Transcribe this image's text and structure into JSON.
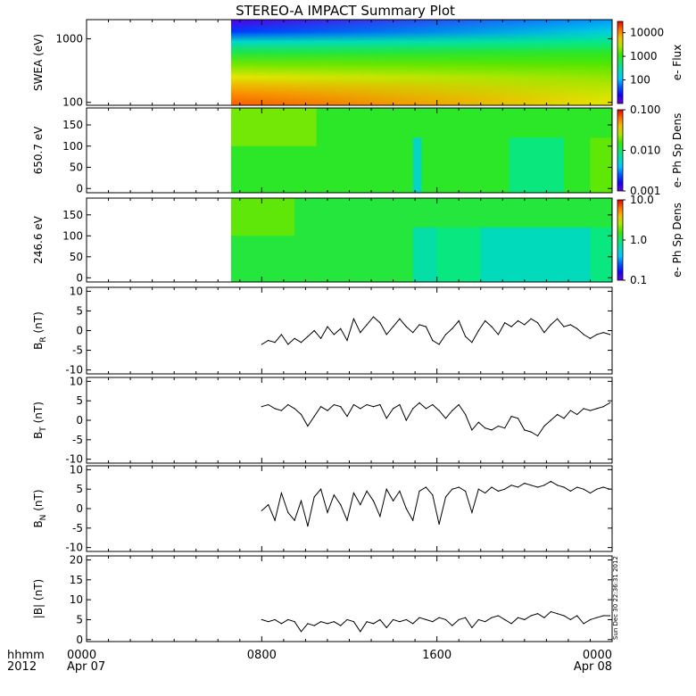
{
  "title": "STEREO-A IMPACT Summary Plot",
  "stamp": "Sun Dec 30 22:36:31 2012",
  "time_axis": {
    "corner_top": "hhmm",
    "corner_bottom": "2012",
    "ticks": [
      {
        "hour": 0,
        "label": "0000",
        "sublabel": "Apr 07"
      },
      {
        "hour": 8,
        "label": "0800",
        "sublabel": ""
      },
      {
        "hour": 16,
        "label": "1600",
        "sublabel": ""
      },
      {
        "hour": 24,
        "label": "0000",
        "sublabel": "Apr 08"
      }
    ],
    "range_hours": [
      0,
      24
    ]
  },
  "chart_data": [
    {
      "type": "heatmap",
      "ylabel": "SWEA (eV)",
      "yscale": "log",
      "ylim": [
        90,
        2000
      ],
      "yticks": [
        {
          "v": 100,
          "label": "100"
        },
        {
          "v": 1000,
          "label": "1000"
        }
      ],
      "data_start_hour": 6.6,
      "colorbar": {
        "label": "e- Flux",
        "scale": "log",
        "range": [
          10,
          30000
        ],
        "ticks": [
          {
            "v": 100,
            "label": "100"
          },
          {
            "v": 1000,
            "label": "1000"
          },
          {
            "v": 10000,
            "label": "10000"
          }
        ]
      },
      "levels": [
        {
          "ev": 2000,
          "log_flux_start": 1.1,
          "log_flux_end": 1.9
        },
        {
          "ev": 1300,
          "log_flux_start": 1.6,
          "log_flux_end": 2.2
        },
        {
          "ev": 900,
          "log_flux_start": 2.3,
          "log_flux_end": 2.6
        },
        {
          "ev": 600,
          "log_flux_start": 2.85,
          "log_flux_end": 2.95
        },
        {
          "ev": 400,
          "log_flux_start": 3.25,
          "log_flux_end": 3.15
        },
        {
          "ev": 250,
          "log_flux_start": 3.6,
          "log_flux_end": 3.35
        },
        {
          "ev": 150,
          "log_flux_start": 3.95,
          "log_flux_end": 3.5
        },
        {
          "ev": 100,
          "log_flux_start": 4.15,
          "log_flux_end": 3.6
        }
      ]
    },
    {
      "type": "heatmap",
      "ylabel": "650.7 eV",
      "ylim": [
        -10,
        190
      ],
      "yticks": [
        {
          "v": 0,
          "label": "0"
        },
        {
          "v": 50,
          "label": "50"
        },
        {
          "v": 100,
          "label": "100"
        },
        {
          "v": 150,
          "label": "150"
        }
      ],
      "data_start_hour": 6.6,
      "colorbar": {
        "label": "e- Ph Sp Dens",
        "scale": "log",
        "range": [
          0.001,
          0.1
        ],
        "ticks": [
          {
            "v": 0.001,
            "label": "0.001"
          },
          {
            "v": 0.01,
            "label": "0.010"
          },
          {
            "v": 0.1,
            "label": "0.100"
          }
        ]
      },
      "base_level": 0.56,
      "patches": [
        {
          "t0": 6.6,
          "t1": 10.5,
          "level": 0.66
        },
        {
          "t0": 14.9,
          "t1": 15.3,
          "level": 0.35
        },
        {
          "t0": 19.3,
          "t1": 21.8,
          "level": 0.46
        },
        {
          "t0": 23.0,
          "t1": 24.0,
          "level": 0.64
        }
      ]
    },
    {
      "type": "heatmap",
      "ylabel": "246.6 eV",
      "ylim": [
        -10,
        190
      ],
      "yticks": [
        {
          "v": 0,
          "label": "0"
        },
        {
          "v": 50,
          "label": "50"
        },
        {
          "v": 100,
          "label": "100"
        },
        {
          "v": 150,
          "label": "150"
        }
      ],
      "data_start_hour": 6.6,
      "colorbar": {
        "label": "e- Ph Sp Dens",
        "scale": "log",
        "range": [
          0.1,
          10
        ],
        "ticks": [
          {
            "v": 0.1,
            "label": "0.1"
          },
          {
            "v": 1,
            "label": "1.0"
          },
          {
            "v": 10,
            "label": "10.0"
          }
        ]
      },
      "base_level": 0.54,
      "patches": [
        {
          "t0": 6.6,
          "t1": 9.5,
          "level": 0.64
        },
        {
          "t0": 14.9,
          "t1": 16.0,
          "level": 0.4
        },
        {
          "t0": 16.0,
          "t1": 24.0,
          "level": 0.46
        },
        {
          "t0": 18.0,
          "t1": 23.0,
          "level": 0.38
        }
      ]
    },
    {
      "type": "line",
      "ylabel": "B",
      "ysub": "R",
      "yunit": " (nT)",
      "ylim": [
        -11,
        11
      ],
      "yticks": [
        -10,
        -5,
        0,
        5,
        10
      ],
      "x": [
        8.0,
        8.3,
        8.6,
        8.9,
        9.2,
        9.5,
        9.8,
        10.1,
        10.4,
        10.7,
        11.0,
        11.3,
        11.6,
        11.9,
        12.2,
        12.5,
        12.8,
        13.1,
        13.4,
        13.7,
        14.0,
        14.3,
        14.6,
        14.9,
        15.2,
        15.5,
        15.8,
        16.1,
        16.4,
        16.7,
        17.0,
        17.3,
        17.6,
        17.9,
        18.2,
        18.5,
        18.8,
        19.1,
        19.4,
        19.7,
        20.0,
        20.3,
        20.6,
        20.9,
        21.2,
        21.5,
        21.8,
        22.1,
        22.4,
        22.7,
        23.0,
        23.3,
        23.6,
        23.9
      ],
      "y": [
        -3.5,
        -2.5,
        -3.0,
        -1.0,
        -3.5,
        -2.0,
        -3.0,
        -1.5,
        0.0,
        -2.0,
        1.0,
        -1.0,
        0.5,
        -2.5,
        3.0,
        -0.5,
        1.5,
        3.5,
        2.0,
        -1.0,
        1.0,
        3.0,
        1.0,
        -0.5,
        1.5,
        1.0,
        -2.5,
        -3.5,
        -1.0,
        0.5,
        2.5,
        -1.5,
        -3.0,
        0.0,
        2.5,
        1.0,
        -1.0,
        2.0,
        1.0,
        2.5,
        1.5,
        3.0,
        2.0,
        -0.5,
        1.5,
        3.0,
        1.0,
        1.5,
        0.5,
        -1.0,
        -2.0,
        -1.0,
        -0.5,
        -1.0
      ]
    },
    {
      "type": "line",
      "ylabel": "B",
      "ysub": "T",
      "yunit": " (nT)",
      "ylim": [
        -11,
        11
      ],
      "yticks": [
        -10,
        -5,
        0,
        5,
        10
      ],
      "x": [
        8.0,
        8.3,
        8.6,
        8.9,
        9.2,
        9.5,
        9.8,
        10.1,
        10.4,
        10.7,
        11.0,
        11.3,
        11.6,
        11.9,
        12.2,
        12.5,
        12.8,
        13.1,
        13.4,
        13.7,
        14.0,
        14.3,
        14.6,
        14.9,
        15.2,
        15.5,
        15.8,
        16.1,
        16.4,
        16.7,
        17.0,
        17.3,
        17.6,
        17.9,
        18.2,
        18.5,
        18.8,
        19.1,
        19.4,
        19.7,
        20.0,
        20.3,
        20.6,
        20.9,
        21.2,
        21.5,
        21.8,
        22.1,
        22.4,
        22.7,
        23.0,
        23.3,
        23.6,
        23.9
      ],
      "y": [
        3.5,
        4.0,
        3.0,
        2.5,
        4.0,
        3.0,
        1.5,
        -1.5,
        1.0,
        3.5,
        2.5,
        4.0,
        3.5,
        1.0,
        4.0,
        3.0,
        4.0,
        3.5,
        4.0,
        0.5,
        3.0,
        4.0,
        0.0,
        3.0,
        4.5,
        3.0,
        4.0,
        2.5,
        0.5,
        2.5,
        4.0,
        1.5,
        -2.5,
        -0.5,
        -2.0,
        -2.5,
        -1.5,
        -2.0,
        1.0,
        0.5,
        -2.5,
        -3.0,
        -4.0,
        -1.5,
        0.0,
        1.5,
        0.5,
        2.5,
        1.5,
        3.0,
        2.5,
        3.0,
        3.5,
        4.5
      ]
    },
    {
      "type": "line",
      "ylabel": "B",
      "ysub": "N",
      "yunit": " (nT)",
      "ylim": [
        -11,
        11
      ],
      "yticks": [
        -10,
        -5,
        0,
        5,
        10
      ],
      "x": [
        8.0,
        8.3,
        8.6,
        8.9,
        9.2,
        9.5,
        9.8,
        10.1,
        10.4,
        10.7,
        11.0,
        11.3,
        11.6,
        11.9,
        12.2,
        12.5,
        12.8,
        13.1,
        13.4,
        13.7,
        14.0,
        14.3,
        14.6,
        14.9,
        15.2,
        15.5,
        15.8,
        16.1,
        16.4,
        16.7,
        17.0,
        17.3,
        17.6,
        17.9,
        18.2,
        18.5,
        18.8,
        19.1,
        19.4,
        19.7,
        20.0,
        20.3,
        20.6,
        20.9,
        21.2,
        21.5,
        21.8,
        22.1,
        22.4,
        22.7,
        23.0,
        23.3,
        23.6,
        23.9
      ],
      "y": [
        -0.5,
        1.0,
        -3.0,
        4.0,
        -1.0,
        -3.0,
        2.0,
        -4.5,
        3.0,
        5.0,
        -1.0,
        3.5,
        1.0,
        -3.0,
        4.0,
        1.0,
        4.5,
        2.0,
        -2.0,
        5.0,
        2.0,
        4.5,
        0.0,
        -3.0,
        4.5,
        5.5,
        3.5,
        -4.0,
        3.0,
        5.0,
        5.5,
        4.5,
        -1.0,
        5.0,
        4.0,
        5.5,
        4.5,
        5.0,
        6.0,
        5.5,
        6.5,
        6.0,
        5.5,
        6.0,
        7.0,
        6.0,
        5.5,
        4.5,
        5.5,
        5.0,
        4.0,
        5.0,
        5.5,
        5.0
      ]
    },
    {
      "type": "line",
      "ylabel": "|B| (nT)",
      "ylim": [
        -0.5,
        21
      ],
      "yticks": [
        0,
        5,
        10,
        15,
        20
      ],
      "x": [
        8.0,
        8.3,
        8.6,
        8.9,
        9.2,
        9.5,
        9.8,
        10.1,
        10.4,
        10.7,
        11.0,
        11.3,
        11.6,
        11.9,
        12.2,
        12.5,
        12.8,
        13.1,
        13.4,
        13.7,
        14.0,
        14.3,
        14.6,
        14.9,
        15.2,
        15.5,
        15.8,
        16.1,
        16.4,
        16.7,
        17.0,
        17.3,
        17.6,
        17.9,
        18.2,
        18.5,
        18.8,
        19.1,
        19.4,
        19.7,
        20.0,
        20.3,
        20.6,
        20.9,
        21.2,
        21.5,
        21.8,
        22.1,
        22.4,
        22.7,
        23.0,
        23.3,
        23.6,
        23.9
      ],
      "y": [
        5.0,
        4.5,
        5.0,
        4.0,
        5.0,
        4.5,
        2.0,
        4.0,
        3.5,
        4.5,
        4.0,
        4.5,
        3.5,
        5.0,
        4.5,
        2.0,
        4.5,
        4.0,
        5.0,
        3.0,
        5.0,
        4.5,
        5.0,
        4.0,
        5.5,
        5.0,
        4.5,
        5.5,
        5.0,
        3.5,
        5.0,
        5.5,
        3.0,
        5.0,
        4.5,
        5.5,
        6.0,
        5.0,
        4.0,
        5.5,
        5.0,
        6.0,
        6.5,
        5.5,
        7.0,
        6.5,
        6.0,
        5.0,
        6.0,
        4.0,
        5.0,
        5.5,
        6.0,
        6.0
      ]
    }
  ]
}
